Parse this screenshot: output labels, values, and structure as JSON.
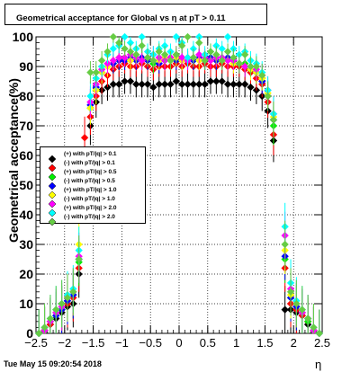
{
  "title": "Geometrical acceptance for Global vs  η at pT > 0.11",
  "footer": "Tue May 15 09:20:54 2018",
  "chart_data": {
    "type": "scatter",
    "title": "Geometrical acceptance for Global vs  η at pT > 0.11",
    "xlabel": "η",
    "ylabel": "Geometrical acceptance(%)",
    "xlim": [
      -2.5,
      2.5
    ],
    "ylim": [
      0,
      100
    ],
    "xticks": [
      "−2.5",
      "−2",
      "−1.5",
      "−1",
      "−0.5",
      "0",
      "0.5",
      "1",
      "1.5",
      "2",
      "2.5"
    ],
    "yticks": [
      "0",
      "10",
      "20",
      "30",
      "40",
      "50",
      "60",
      "70",
      "80",
      "90",
      "100"
    ],
    "grid": true,
    "legend_position": "left-middle",
    "x": [
      -2.45,
      -2.35,
      -2.25,
      -2.15,
      -2.05,
      -1.95,
      -1.85,
      -1.75,
      -1.65,
      -1.55,
      -1.45,
      -1.35,
      -1.25,
      -1.15,
      -1.05,
      -0.95,
      -0.85,
      -0.75,
      -0.65,
      -0.55,
      -0.45,
      -0.35,
      -0.25,
      -0.15,
      -0.05,
      0.05,
      0.15,
      0.25,
      0.35,
      0.45,
      0.55,
      0.65,
      0.75,
      0.85,
      0.95,
      1.05,
      1.15,
      1.25,
      1.35,
      1.45,
      1.55,
      1.65,
      1.75,
      1.85,
      1.95,
      2.05,
      2.15,
      2.25,
      2.35,
      2.45
    ],
    "series": [
      {
        "name": "(+) with pT/|q| > 0.1",
        "color": "#000000",
        "values": [
          0,
          1,
          3,
          5,
          7,
          9,
          10,
          20,
          null,
          70,
          78,
          82,
          83,
          84,
          84,
          85,
          85,
          84,
          84,
          84,
          83,
          84,
          84,
          84,
          85,
          84,
          84,
          84,
          84,
          84,
          85,
          85,
          85,
          84,
          84,
          84,
          84,
          83,
          82,
          80,
          75,
          65,
          null,
          8,
          8,
          7,
          6,
          3,
          1,
          0
        ]
      },
      {
        "name": "(-) with pT/|q| > 0.1",
        "color": "#ff0000",
        "values": [
          0,
          1,
          3,
          6,
          8,
          10,
          12,
          22,
          66,
          73,
          80,
          85,
          87,
          89,
          90,
          91,
          90,
          90,
          91,
          90,
          89,
          90,
          90,
          90,
          91,
          90,
          91,
          90,
          90,
          91,
          90,
          90,
          91,
          90,
          90,
          90,
          89,
          88,
          86,
          84,
          78,
          67,
          null,
          22,
          10,
          8,
          6,
          4,
          1,
          0
        ]
      },
      {
        "name": "(+) with pT/|q| > 0.5",
        "color": "#00ee00",
        "values": [
          0,
          1,
          4,
          6,
          8,
          11,
          13,
          24,
          null,
          76,
          82,
          88,
          90,
          91,
          92,
          93,
          92,
          93,
          92,
          92,
          91,
          92,
          93,
          92,
          93,
          92,
          93,
          92,
          93,
          92,
          93,
          92,
          93,
          92,
          92,
          91,
          91,
          89,
          88,
          86,
          80,
          70,
          null,
          25,
          12,
          9,
          7,
          4,
          1,
          0
        ]
      },
      {
        "name": "(-) with pT/|q| > 0.5",
        "color": "#0000ff",
        "values": [
          0,
          1,
          4,
          6,
          8,
          11,
          13,
          25,
          null,
          77,
          83,
          88,
          90,
          91,
          92,
          92,
          93,
          92,
          93,
          92,
          92,
          91,
          92,
          93,
          92,
          93,
          92,
          92,
          93,
          92,
          93,
          92,
          92,
          93,
          92,
          91,
          90,
          89,
          88,
          85,
          80,
          72,
          null,
          26,
          12,
          9,
          7,
          5,
          1,
          0
        ]
      },
      {
        "name": "(+) with pT/|q| > 1.0",
        "color": "#ffff00",
        "values": [
          0,
          1,
          4,
          7,
          9,
          12,
          14,
          30,
          null,
          76,
          82,
          88,
          90,
          92,
          93,
          93,
          92,
          93,
          92,
          93,
          92,
          92,
          93,
          92,
          93,
          92,
          93,
          93,
          92,
          93,
          92,
          93,
          92,
          92,
          91,
          91,
          90,
          89,
          88,
          86,
          81,
          73,
          null,
          28,
          13,
          10,
          7,
          5,
          1,
          0
        ]
      },
      {
        "name": "(-) with pT/|q| > 1.0",
        "color": "#ff00ff",
        "values": [
          0,
          1,
          4,
          7,
          9,
          12,
          14,
          26,
          null,
          78,
          84,
          89,
          91,
          92,
          93,
          93,
          94,
          93,
          92,
          93,
          94,
          93,
          92,
          93,
          94,
          93,
          92,
          93,
          94,
          93,
          92,
          93,
          93,
          92,
          92,
          91,
          90,
          90,
          89,
          87,
          82,
          74,
          null,
          33,
          15,
          10,
          7,
          5,
          1,
          0
        ]
      },
      {
        "name": "(+) with pT/|q| > 2.0",
        "color": "#00ffff",
        "values": [
          0,
          2,
          5,
          8,
          10,
          13,
          15,
          28,
          null,
          80,
          86,
          90,
          94,
          96,
          97,
          100,
          98,
          96,
          100,
          95,
          94,
          96,
          97,
          95,
          100,
          98,
          93,
          96,
          100,
          94,
          95,
          97,
          96,
          100,
          96,
          94,
          95,
          92,
          91,
          88,
          82,
          74,
          null,
          36,
          17,
          11,
          8,
          5,
          2,
          0
        ]
      },
      {
        "name": "(-) with pT/|q| > 2.0",
        "color": "#66cc44",
        "values": [
          0,
          2,
          5,
          8,
          10,
          12,
          14,
          25,
          null,
          88,
          88,
          92,
          95,
          100,
          98,
          96,
          95,
          94,
          97,
          93,
          92,
          95,
          94,
          92,
          94,
          97,
          100,
          93,
          98,
          92,
          95,
          94,
          92,
          95,
          93,
          91,
          94,
          90,
          90,
          87,
          80,
          72,
          null,
          30,
          14,
          10,
          8,
          5,
          2,
          0
        ]
      }
    ]
  }
}
